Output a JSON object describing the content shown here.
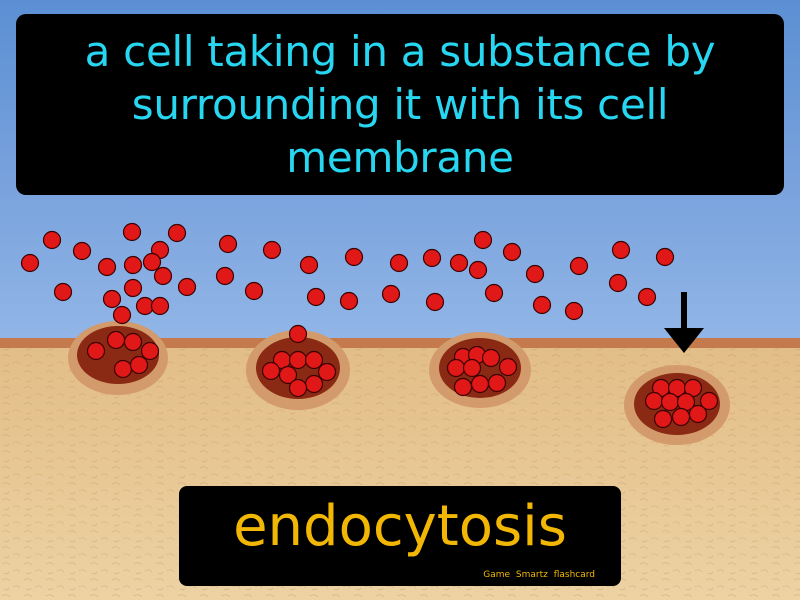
{
  "definition": "a cell taking in a substance by surrounding it with its cell membrane",
  "term": "endocytosis",
  "brand": "Game Smartz flashcard",
  "colors": {
    "sky_top": "#5b8fd3",
    "sky_bottom": "#8fb4e6",
    "membrane": "#c47a4d",
    "cell_interior": "#e5c48f",
    "vesicle_rim": "#d39a6c",
    "vesicle_inner": "#8a2a14",
    "particle": "#e01818",
    "definition_text": "#27d6f0",
    "term_text": "#f2b705"
  },
  "icons": {
    "arrow": "down-arrow-icon"
  }
}
